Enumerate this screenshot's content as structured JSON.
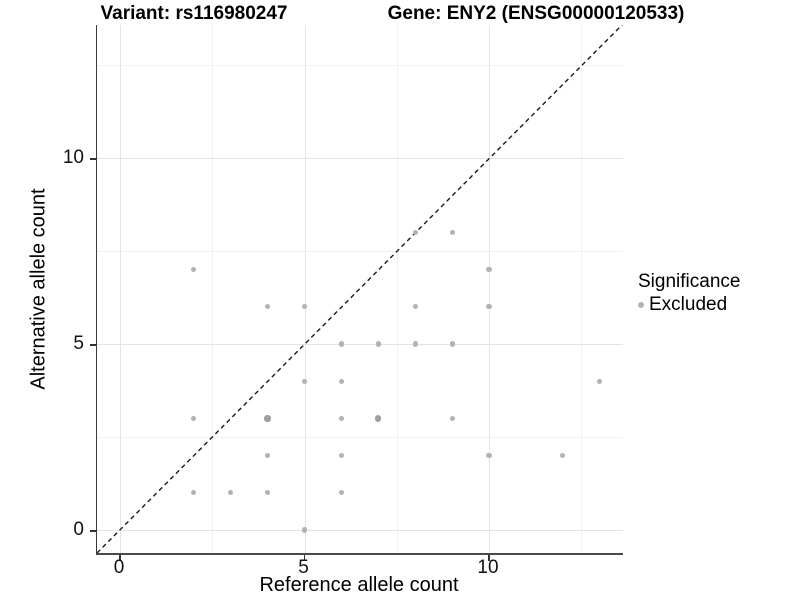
{
  "titles": {
    "variant": "Variant: rs116980247",
    "gene": "Gene: ENY2 (ENSG00000120533)"
  },
  "axes": {
    "x_label": "Reference allele count",
    "y_label": "Alternative allele count",
    "x_tick_labels": [
      "0",
      "5",
      "10"
    ],
    "y_tick_labels": [
      "0",
      "5",
      "10"
    ]
  },
  "legend": {
    "title": "Significance",
    "items": [
      {
        "label": "Excluded",
        "color": "#b3b3b3"
      }
    ]
  },
  "colors": {
    "point": "#b3b3b3",
    "point_dense": "#9f9f9f",
    "grid_major": "#e4e4e4",
    "grid_minor": "#f1f1f1",
    "axis_line": "#3a3a3a",
    "tick": "#333333",
    "identity_line": "#1a1a1a",
    "text": "#000000"
  },
  "chart_data": {
    "type": "scatter",
    "title": "Variant: rs116980247 — Gene: ENY2 (ENSG00000120533)",
    "xlabel": "Reference allele count",
    "ylabel": "Alternative allele count",
    "xlim": [
      -0.62,
      13.63
    ],
    "ylim": [
      -0.62,
      13.58
    ],
    "x_major_ticks": [
      0,
      5,
      10
    ],
    "y_major_ticks": [
      0,
      5,
      10
    ],
    "x_minor_ticks": [
      2.5,
      7.5,
      12.5
    ],
    "y_minor_ticks": [
      2.5,
      7.5,
      12.5
    ],
    "grid": true,
    "legend_position": "right",
    "identity_line": {
      "style": "dashed",
      "equation": "y = x",
      "from": [
        -0.62,
        -0.62
      ],
      "to": [
        13.58,
        13.58
      ]
    },
    "series": [
      {
        "name": "Excluded",
        "color": "#b3b3b3",
        "points": [
          [
            2,
            7
          ],
          [
            8,
            8
          ],
          [
            9,
            8
          ],
          [
            10,
            7
          ],
          [
            4,
            6
          ],
          [
            5,
            6
          ],
          [
            8,
            6
          ],
          [
            10,
            6
          ],
          [
            6,
            5
          ],
          [
            7,
            5
          ],
          [
            8,
            5
          ],
          [
            9,
            5
          ],
          [
            5,
            4
          ],
          [
            6,
            4
          ],
          [
            13,
            4
          ],
          [
            2,
            3
          ],
          [
            4,
            3
          ],
          [
            6,
            3
          ],
          [
            7,
            3
          ],
          [
            9,
            3
          ],
          [
            4,
            2
          ],
          [
            6,
            2
          ],
          [
            10,
            2
          ],
          [
            12,
            2
          ],
          [
            2,
            1
          ],
          [
            3,
            1
          ],
          [
            4,
            1
          ],
          [
            6,
            1
          ],
          [
            5,
            0
          ]
        ],
        "overplotted_points": [
          [
            4,
            3
          ],
          [
            7,
            3
          ]
        ]
      }
    ]
  }
}
